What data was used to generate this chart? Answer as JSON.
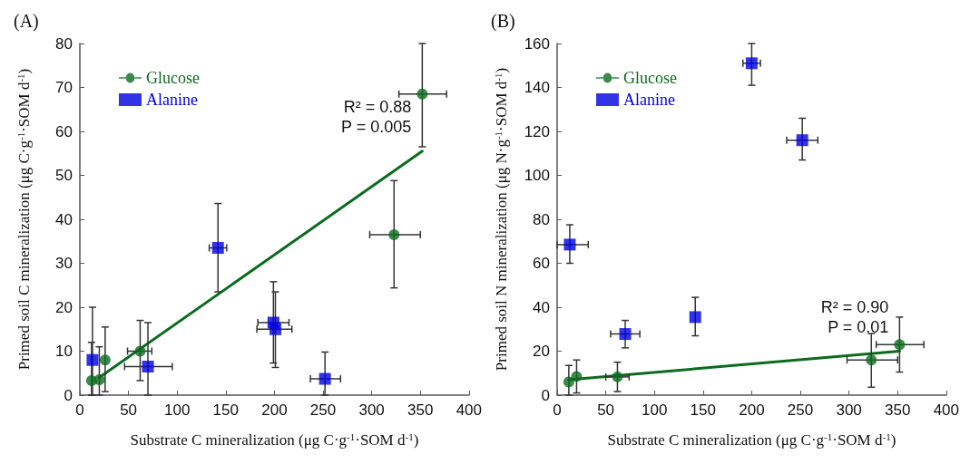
{
  "chart_data": [
    {
      "type": "scatter",
      "title": "(A)",
      "xlabel": "Substrate C mineralization (μg C·g$^{-1}$·SOM d$^{-1}$)",
      "ylabel": "Primed soil C mineralization (μg C·g$^{-1}$·SOM d$^{-1}$)",
      "xlim": [
        0,
        400
      ],
      "xticks": [
        0,
        50,
        100,
        150,
        200,
        250,
        300,
        350,
        400
      ],
      "ylim": [
        0,
        80
      ],
      "yticks": [
        0,
        10,
        20,
        30,
        40,
        50,
        60,
        70,
        80
      ],
      "grid": false,
      "legend": "top left",
      "annotations": [
        "R² = 0.88\nP = 0.005"
      ],
      "series": [
        {
          "name": "Glucose",
          "color": "#0b6b1e",
          "marker": "circle",
          "x": [
            12,
            20,
            26,
            62,
            323,
            352
          ],
          "values": [
            3.3,
            3.5,
            8,
            10,
            36.5,
            68.5
          ],
          "errors": [
            [
              0,
              12
            ],
            [
              0,
              11
            ],
            [
              0.8,
              15.5
            ],
            [
              3.3,
              17
            ],
            [
              24.4,
              48.8
            ],
            [
              56.5,
              80
            ]
          ],
          "xerrors": [
            null,
            null,
            null,
            [
              49,
              74
            ],
            [
              298,
              350
            ],
            [
              328,
              377
            ]
          ]
        },
        {
          "name": "Alanine",
          "color": "#0000e0",
          "marker": "square",
          "x": [
            13,
            70,
            142,
            199,
            201,
            252
          ],
          "values": [
            8,
            6.5,
            33.5,
            16.5,
            15,
            3.7
          ],
          "errors": [
            [
              0,
              20
            ],
            [
              0,
              16.5
            ],
            [
              23.5,
              43.6
            ],
            [
              7.3,
              25.8
            ],
            [
              6.3,
              23.5
            ],
            [
              0,
              9.8
            ]
          ],
          "xerrors": [
            null,
            [
              46,
              95
            ],
            [
              133,
              151
            ],
            [
              183,
              215
            ],
            [
              182,
              218
            ],
            [
              237,
              268
            ]
          ]
        },
        {
          "type": "line",
          "color": "#0b6b1e",
          "marker": "none",
          "x": [
            20,
            352
          ],
          "values": [
            4,
            55.5
          ]
        }
      ]
    },
    {
      "type": "scatter",
      "title": "(B)",
      "xlabel": "Substrate C mineralization (μg C·g$^{-1}$·SOM d$^{-1}$)",
      "ylabel": "Primed soil N mineralization (μg N·g$^{-1}$·SOM d$^{-1}$)",
      "xlim": [
        0,
        400
      ],
      "xticks": [
        0,
        50,
        100,
        150,
        200,
        250,
        300,
        350,
        400
      ],
      "ylim": [
        0,
        160
      ],
      "yticks": [
        0,
        20,
        40,
        60,
        80,
        100,
        120,
        140,
        160
      ],
      "grid": false,
      "legend": "top left",
      "annotations": [
        "R² = 0.90\nP = 0.01"
      ],
      "series": [
        {
          "name": "Glucose",
          "color": "#0b6b1e",
          "marker": "circle",
          "x": [
            12,
            20,
            62,
            323,
            352
          ],
          "values": [
            6,
            8.5,
            8.3,
            16,
            23
          ],
          "errors": [
            [
              0,
              13.5
            ],
            [
              1,
              16
            ],
            [
              1.6,
              15
            ],
            [
              3.6,
              28
            ],
            [
              10.5,
              35.5
            ]
          ],
          "xerrors": [
            null,
            null,
            [
              50,
              74
            ],
            [
              298,
              350
            ],
            [
              328,
              377
            ]
          ]
        },
        {
          "name": "Alanine",
          "color": "#0000e0",
          "marker": "square",
          "x": [
            13,
            70,
            142,
            200,
            252
          ],
          "values": [
            68.5,
            27.8,
            35.5,
            151,
            116
          ],
          "errors": [
            [
              60,
              77.5
            ],
            [
              21.5,
              34
            ],
            [
              27,
              44.5
            ],
            [
              141,
              160
            ],
            [
              107,
              126
            ]
          ],
          "xerrors": [
            [
              0,
              32
            ],
            [
              55,
              85
            ],
            null,
            [
              191,
              209
            ],
            [
              236,
              268
            ]
          ]
        },
        {
          "type": "line",
          "color": "#0b6b1e",
          "marker": "none",
          "x": [
            12,
            352
          ],
          "values": [
            7,
            20
          ]
        }
      ]
    }
  ]
}
